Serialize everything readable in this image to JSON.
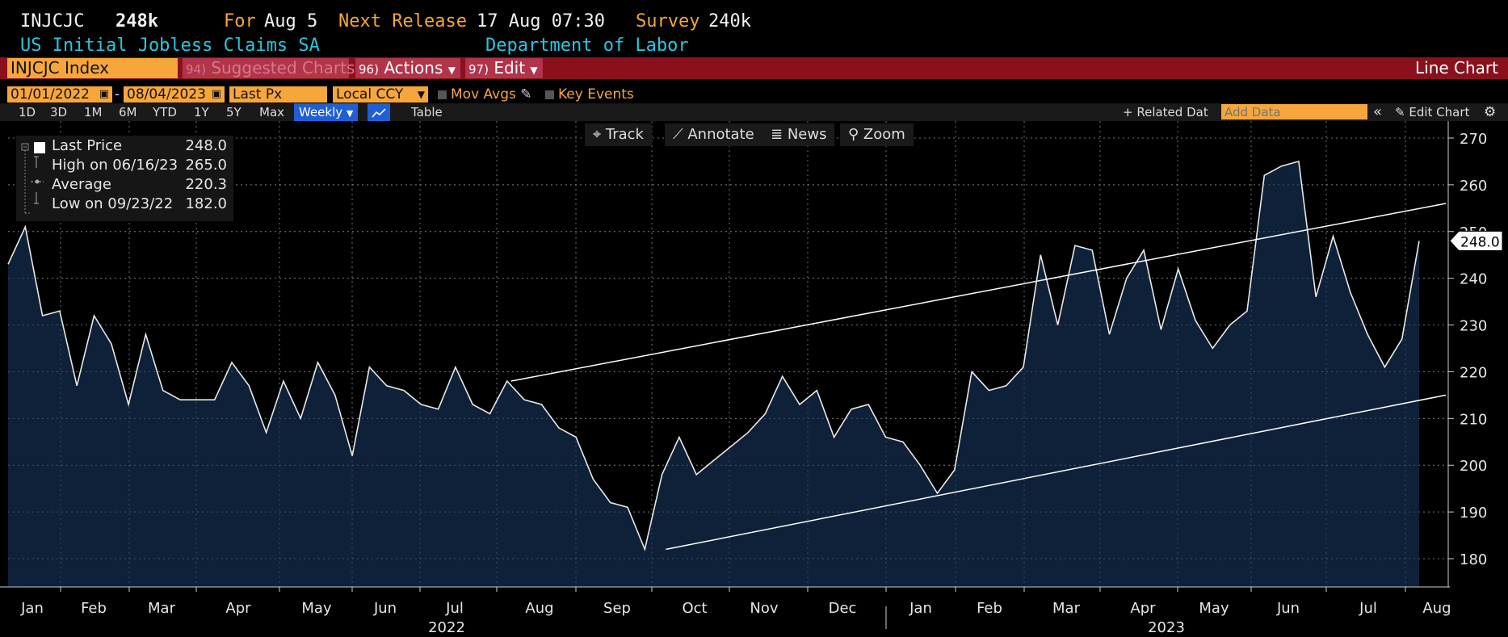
{
  "header": {
    "ticker": "INJCJC",
    "value": "248k",
    "for_label": "For",
    "for_date": "Aug 5",
    "next_release_label": "Next Release",
    "next_release_value": "17 Aug 07:30",
    "survey_label": "Survey",
    "survey_value": "240k",
    "title": "US Initial Jobless Claims SA",
    "source": "Department of Labor"
  },
  "menubar": {
    "security": "INJCJC Index",
    "suggested_num": "94)",
    "suggested": "Suggested Charts",
    "actions_num": "96)",
    "actions": "Actions",
    "edit_num": "97)",
    "edit": "Edit",
    "chart_type": "Line Chart"
  },
  "controls": {
    "start_date": "01/01/2022",
    "end_date": "08/04/2023",
    "dash": "-",
    "field": "Last Px",
    "currency": "Local CCY",
    "mov_avgs": "Mov Avgs",
    "key_events": "Key Events"
  },
  "periods": [
    "1D",
    "3D",
    "1M",
    "6M",
    "YTD",
    "1Y",
    "5Y",
    "Max"
  ],
  "frequency": "Weekly",
  "table_label": "Table",
  "related_data": "+ Related Dat",
  "add_data_placeholder": "Add Data",
  "edit_chart": "Edit Chart",
  "plot_tools": {
    "track": "Track",
    "annotate": "Annotate",
    "news": "News",
    "zoom": "Zoom"
  },
  "legend": {
    "last_price_label": "Last Price",
    "last_price_value": "248.0",
    "high_label": "High on 06/16/23",
    "high_value": "265.0",
    "average_label": "Average",
    "average_value": "220.3",
    "low_label": "Low on 09/23/22",
    "low_value": "182.0"
  },
  "colors": {
    "accent": "#f6a63a",
    "menubar": "#8a101c",
    "cyan": "#27c6e0",
    "area_fill": "#0e2138",
    "line": "#e8e8e8"
  },
  "chart_data": {
    "type": "area",
    "y_range": [
      175,
      273
    ],
    "y_ticks": [
      180,
      190,
      200,
      210,
      220,
      230,
      240,
      250,
      260,
      270
    ],
    "last_value_label": "248.0",
    "month_labels": [
      "Jan",
      "Feb",
      "Mar",
      "Apr",
      "May",
      "Jun",
      "Jul",
      "Aug",
      "Sep",
      "Oct",
      "Nov",
      "Dec",
      "Jan",
      "Feb",
      "Mar",
      "Apr",
      "May",
      "Jun",
      "Jul",
      "Aug"
    ],
    "year_labels": [
      "2022",
      "2023"
    ],
    "values": [
      243,
      251,
      232,
      233,
      217,
      232,
      226,
      213,
      228,
      216,
      214,
      214,
      214,
      222,
      217,
      207,
      218,
      210,
      222,
      215,
      202,
      221,
      217,
      216,
      213,
      212,
      221,
      213,
      211,
      218,
      214,
      213,
      208,
      206,
      197,
      192,
      191,
      182,
      198,
      206,
      198,
      201,
      204,
      207,
      211,
      219,
      213,
      216,
      206,
      212,
      213,
      206,
      205,
      200,
      194,
      199,
      220,
      216,
      217,
      221,
      245,
      230,
      247,
      246,
      228,
      240,
      246,
      229,
      242,
      231,
      225,
      230,
      233,
      262,
      264,
      265,
      236,
      249,
      237,
      228,
      221,
      227,
      248
    ],
    "trendlines": [
      {
        "from": [
          "2022-07-22",
          218
        ],
        "to": [
          "2023-08-05",
          256
        ]
      },
      {
        "from": [
          "2022-09-23",
          182
        ],
        "to": [
          "2023-08-05",
          215
        ]
      }
    ]
  }
}
